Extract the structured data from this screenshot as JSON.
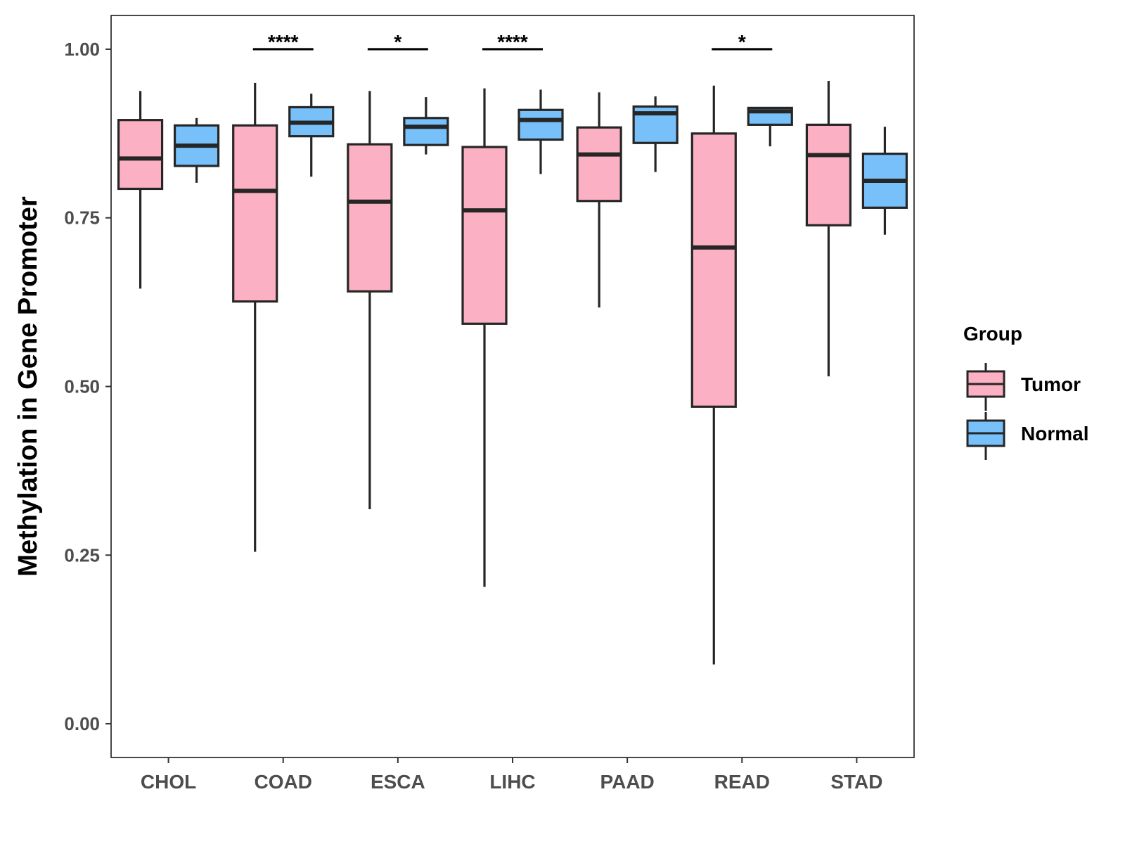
{
  "chart_data": {
    "type": "boxplot",
    "title": "",
    "xlabel": "",
    "ylabel": "Methylation in Gene Promoter",
    "ylim": [
      -0.05,
      1.05
    ],
    "yticks": [
      {
        "value": 0.0,
        "label": "0.00"
      },
      {
        "value": 0.25,
        "label": "0.25"
      },
      {
        "value": 0.5,
        "label": "0.50"
      },
      {
        "value": 0.75,
        "label": "0.75"
      },
      {
        "value": 1.0,
        "label": "1.00"
      }
    ],
    "categories": [
      "CHOL",
      "COAD",
      "ESCA",
      "LIHC",
      "PAAD",
      "READ",
      "STAD"
    ],
    "legend": {
      "title": "Group",
      "position": "right",
      "entries": [
        {
          "name": "Tumor",
          "color": "#fcb0c3"
        },
        {
          "name": "Normal",
          "color": "#77c0fa"
        }
      ]
    },
    "series": [
      {
        "name": "Tumor",
        "color": "#fcb0c3",
        "boxes": [
          {
            "min": 0.645,
            "q1": 0.793,
            "median": 0.838,
            "q3": 0.895,
            "max": 0.938
          },
          {
            "min": 0.255,
            "q1": 0.626,
            "median": 0.79,
            "q3": 0.887,
            "max": 0.95
          },
          {
            "min": 0.318,
            "q1": 0.641,
            "median": 0.774,
            "q3": 0.859,
            "max": 0.938
          },
          {
            "min": 0.203,
            "q1": 0.593,
            "median": 0.761,
            "q3": 0.855,
            "max": 0.942
          },
          {
            "min": 0.617,
            "q1": 0.775,
            "median": 0.844,
            "q3": 0.884,
            "max": 0.936
          },
          {
            "min": 0.088,
            "q1": 0.47,
            "median": 0.706,
            "q3": 0.875,
            "max": 0.946
          },
          {
            "min": 0.515,
            "q1": 0.739,
            "median": 0.843,
            "q3": 0.888,
            "max": 0.953
          }
        ]
      },
      {
        "name": "Normal",
        "color": "#77c0fa",
        "boxes": [
          {
            "min": 0.802,
            "q1": 0.827,
            "median": 0.857,
            "q3": 0.887,
            "max": 0.898
          },
          {
            "min": 0.811,
            "q1": 0.871,
            "median": 0.891,
            "q3": 0.914,
            "max": 0.934
          },
          {
            "min": 0.844,
            "q1": 0.858,
            "median": 0.885,
            "q3": 0.898,
            "max": 0.929
          },
          {
            "min": 0.815,
            "q1": 0.866,
            "median": 0.895,
            "q3": 0.91,
            "max": 0.94
          },
          {
            "min": 0.818,
            "q1": 0.861,
            "median": 0.905,
            "q3": 0.915,
            "max": 0.93
          },
          {
            "min": 0.856,
            "q1": 0.888,
            "median": 0.908,
            "q3": 0.913,
            "max": 0.914
          },
          {
            "min": 0.725,
            "q1": 0.765,
            "median": 0.805,
            "q3": 0.845,
            "max": 0.885
          }
        ]
      }
    ],
    "significance": [
      {
        "category": "COAD",
        "label": "****",
        "y": 1.0
      },
      {
        "category": "ESCA",
        "label": "*",
        "y": 1.0
      },
      {
        "category": "LIHC",
        "label": "****",
        "y": 1.0
      },
      {
        "category": "READ",
        "label": "*",
        "y": 1.0
      }
    ]
  }
}
